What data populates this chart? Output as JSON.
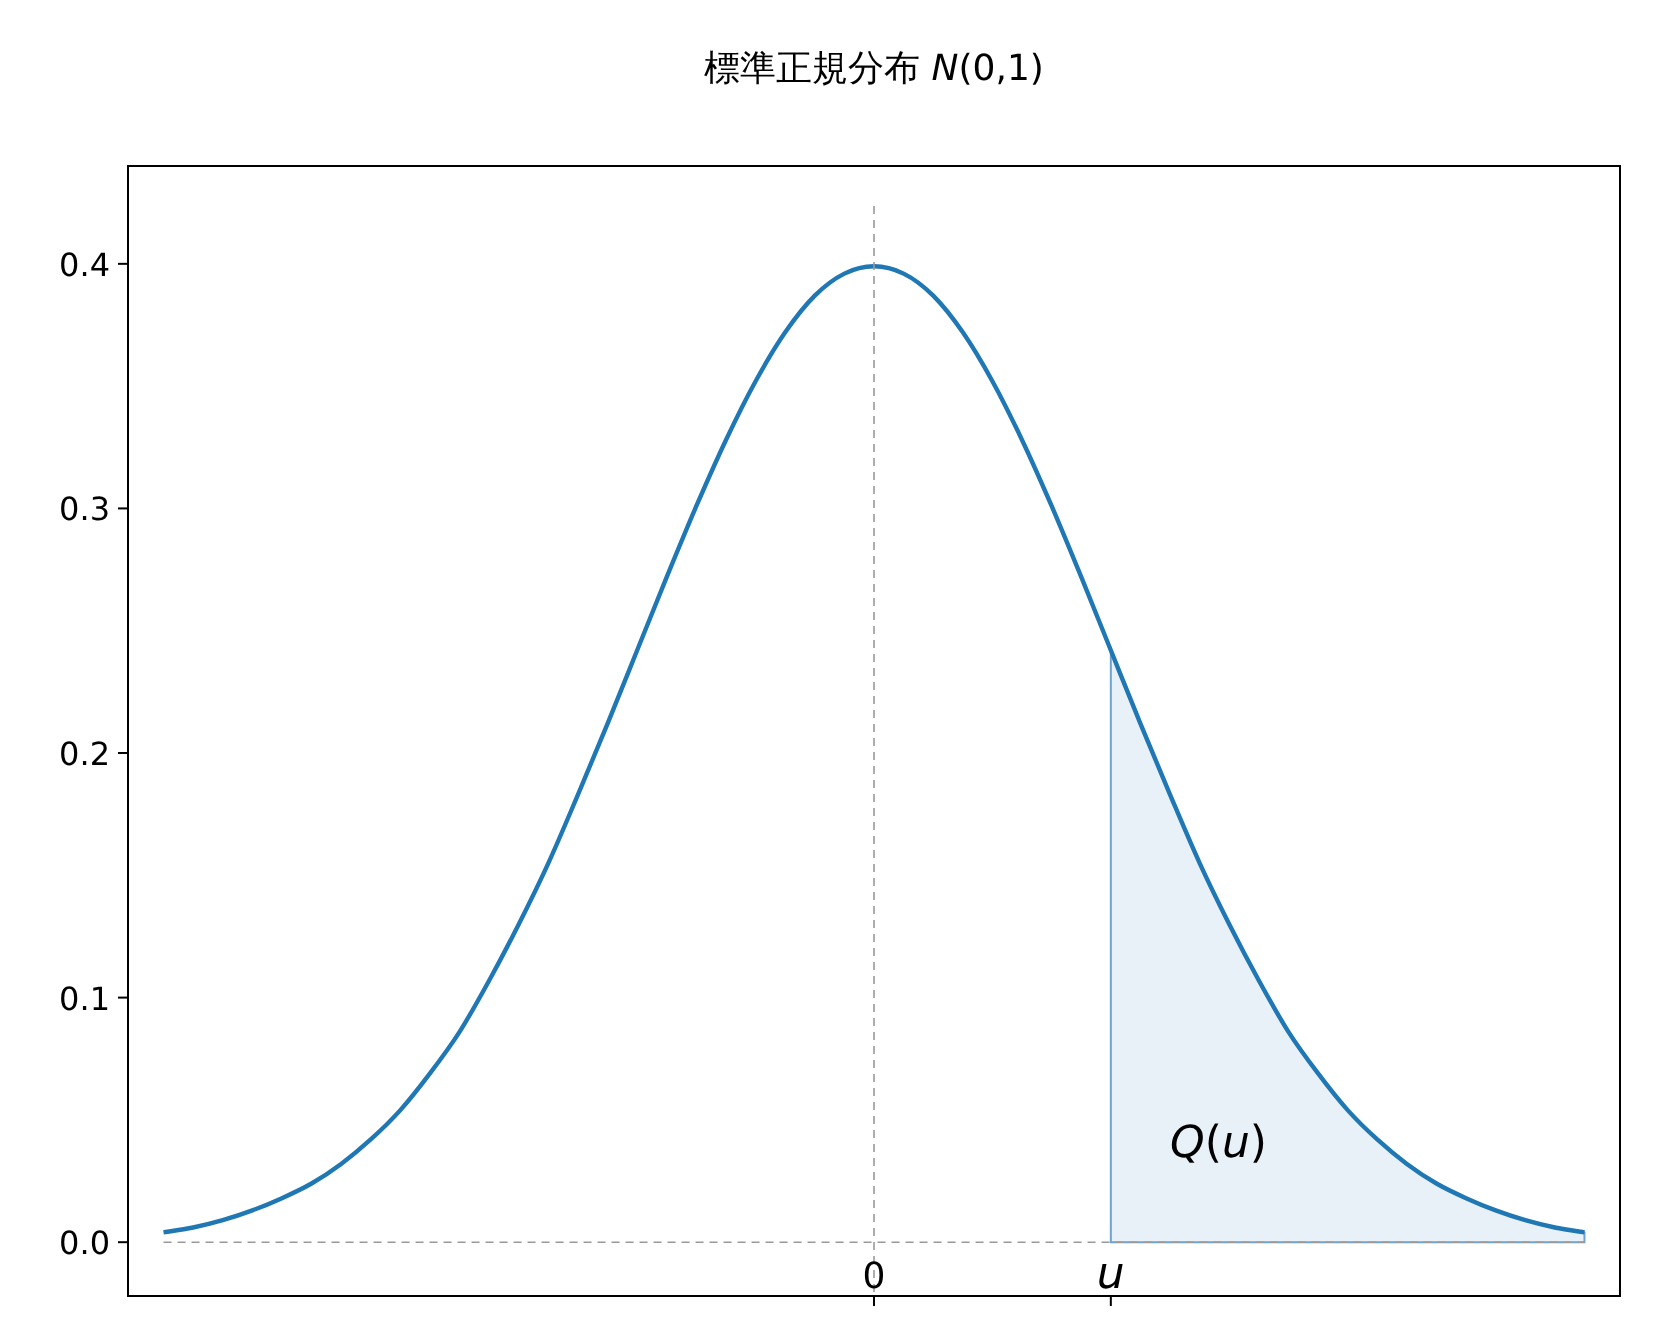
{
  "chart_data": {
    "type": "line",
    "title": "標準正規分布 *N*(0,1)",
    "categories": [
      null,
      null,
      null,
      null,
      null,
      null,
      null,
      null,
      null,
      null,
      null,
      null,
      null,
      null,
      null,
      null,
      null,
      null,
      null,
      null,
      null,
      null,
      null,
      null,
      "0",
      null,
      null,
      null,
      null,
      null,
      null,
      null,
      "u",
      null,
      null,
      null,
      null,
      null,
      null,
      null,
      null,
      null,
      null,
      null,
      null,
      null,
      null,
      null,
      null
    ],
    "ylim": [
      -0.022,
      0.44
    ],
    "yticks": [
      {
        "value": 0,
        "label": "0.0"
      },
      0.1,
      0.2,
      0.3,
      0.4
    ],
    "ref_lines": [
      {
        "axis": "x",
        "value": "0",
        "color": "#999999",
        "line_style": "dashed"
      },
      {
        "axis": "y",
        "value": 0,
        "color": "#999999",
        "line_style": "dashed"
      }
    ],
    "series": [
      {
        "type": "area",
        "color": "#e8f0f8",
        "values": [
          null,
          null,
          null,
          null,
          null,
          null,
          null,
          null,
          null,
          null,
          null,
          null,
          null,
          null,
          null,
          null,
          null,
          null,
          null,
          null,
          null,
          null,
          null,
          null,
          null,
          null,
          null,
          null,
          null,
          null,
          null,
          null,
          0.242,
          0.212,
          0.183,
          0.155,
          0.13,
          0.107,
          0.086,
          0.069,
          0.054,
          0.042,
          0.032,
          0.024,
          0.018,
          0.013,
          0.009,
          0.006,
          0.004
        ]
      },
      {
        "color": "#1f77b4",
        "values": [
          0.004,
          0.006,
          0.009,
          0.013,
          0.018,
          0.024,
          0.032,
          0.042,
          0.054,
          0.069,
          0.086,
          0.107,
          0.13,
          0.155,
          0.183,
          0.212,
          0.242,
          0.272,
          0.301,
          0.328,
          0.352,
          0.372,
          0.387,
          0.396,
          0.399,
          0.396,
          0.387,
          0.372,
          0.352,
          0.328,
          0.301,
          0.272,
          0.242,
          0.212,
          0.183,
          0.155,
          0.13,
          0.107,
          0.086,
          0.069,
          0.054,
          0.042,
          0.032,
          0.024,
          0.018,
          0.013,
          0.009,
          0.006,
          0.004
        ]
      }
    ],
    "annotations": [
      "*Q*(*u*)"
    ],
    "line_style": "solid"
  }
}
